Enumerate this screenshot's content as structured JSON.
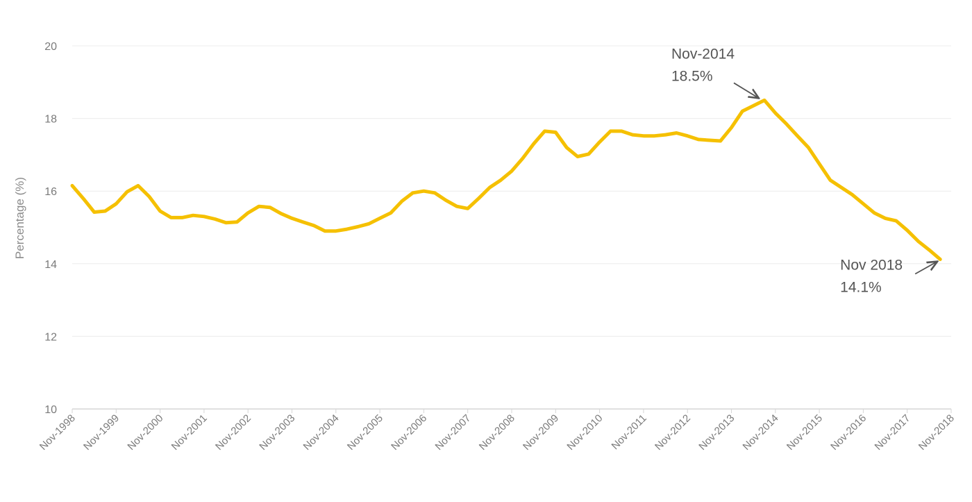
{
  "chart_data": {
    "type": "line",
    "title": "",
    "xlabel": "",
    "ylabel": "Percentage (%)",
    "ylim": [
      10,
      20
    ],
    "yticks": [
      10,
      12,
      14,
      16,
      18,
      20
    ],
    "xlim": [
      0,
      80
    ],
    "grid": "horizontal",
    "legend": "none",
    "line_color": "#F5C000",
    "x_tick_labels": [
      {
        "x": 0,
        "label": "Nov-1998"
      },
      {
        "x": 4,
        "label": "Nov-1999"
      },
      {
        "x": 8,
        "label": "Nov-2000"
      },
      {
        "x": 12,
        "label": "Nov-2001"
      },
      {
        "x": 16,
        "label": "Nov-2002"
      },
      {
        "x": 20,
        "label": "Nov-2003"
      },
      {
        "x": 24,
        "label": "Nov-2004"
      },
      {
        "x": 28,
        "label": "Nov-2005"
      },
      {
        "x": 32,
        "label": "Nov-2006"
      },
      {
        "x": 36,
        "label": "Nov-2007"
      },
      {
        "x": 40,
        "label": "Nov-2008"
      },
      {
        "x": 44,
        "label": "Nov-2009"
      },
      {
        "x": 48,
        "label": "Nov-2010"
      },
      {
        "x": 52,
        "label": "Nov-2011"
      },
      {
        "x": 56,
        "label": "Nov-2012"
      },
      {
        "x": 60,
        "label": "Nov-2013"
      },
      {
        "x": 64,
        "label": "Nov-2014"
      },
      {
        "x": 68,
        "label": "Nov-2015"
      },
      {
        "x": 72,
        "label": "Nov-2016"
      },
      {
        "x": 76,
        "label": "Nov-2017"
      },
      {
        "x": 80,
        "label": "Nov-2018"
      }
    ],
    "series": [
      {
        "points": [
          [
            0,
            16.15
          ],
          [
            1,
            15.8
          ],
          [
            2,
            15.42
          ],
          [
            3,
            15.45
          ],
          [
            4,
            15.65
          ],
          [
            5,
            15.98
          ],
          [
            6,
            16.15
          ],
          [
            7,
            15.85
          ],
          [
            8,
            15.45
          ],
          [
            9,
            15.27
          ],
          [
            10,
            15.27
          ],
          [
            11,
            15.33
          ],
          [
            12,
            15.3
          ],
          [
            13,
            15.23
          ],
          [
            14,
            15.13
          ],
          [
            15,
            15.15
          ],
          [
            16,
            15.4
          ],
          [
            17,
            15.58
          ],
          [
            18,
            15.55
          ],
          [
            19,
            15.38
          ],
          [
            20,
            15.25
          ],
          [
            21,
            15.15
          ],
          [
            22,
            15.05
          ],
          [
            23,
            14.9
          ],
          [
            24,
            14.9
          ],
          [
            25,
            14.95
          ],
          [
            26,
            15.02
          ],
          [
            27,
            15.1
          ],
          [
            28,
            15.25
          ],
          [
            29,
            15.4
          ],
          [
            30,
            15.72
          ],
          [
            31,
            15.95
          ],
          [
            32,
            16.0
          ],
          [
            33,
            15.95
          ],
          [
            34,
            15.75
          ],
          [
            35,
            15.58
          ],
          [
            36,
            15.52
          ],
          [
            37,
            15.8
          ],
          [
            38,
            16.1
          ],
          [
            39,
            16.3
          ],
          [
            40,
            16.55
          ],
          [
            41,
            16.9
          ],
          [
            42,
            17.3
          ],
          [
            43,
            17.65
          ],
          [
            44,
            17.62
          ],
          [
            45,
            17.2
          ],
          [
            46,
            16.95
          ],
          [
            47,
            17.02
          ],
          [
            48,
            17.35
          ],
          [
            49,
            17.65
          ],
          [
            50,
            17.65
          ],
          [
            51,
            17.55
          ],
          [
            52,
            17.52
          ],
          [
            53,
            17.52
          ],
          [
            54,
            17.55
          ],
          [
            55,
            17.6
          ],
          [
            56,
            17.52
          ],
          [
            57,
            17.42
          ],
          [
            58,
            17.4
          ],
          [
            59,
            17.38
          ],
          [
            60,
            17.75
          ],
          [
            61,
            18.2
          ],
          [
            62,
            18.35
          ],
          [
            63,
            18.5
          ],
          [
            64,
            18.15
          ],
          [
            65,
            17.85
          ],
          [
            66,
            17.52
          ],
          [
            67,
            17.2
          ],
          [
            68,
            16.75
          ],
          [
            69,
            16.3
          ],
          [
            70,
            16.1
          ],
          [
            71,
            15.9
          ],
          [
            72,
            15.65
          ],
          [
            73,
            15.4
          ],
          [
            74,
            15.25
          ],
          [
            75,
            15.18
          ],
          [
            76,
            14.92
          ],
          [
            77,
            14.62
          ],
          [
            78,
            14.38
          ],
          [
            79,
            14.12
          ]
        ]
      }
    ],
    "annotations": [
      {
        "line1": "Nov-2014",
        "line2": "18.5%",
        "point_x": 63,
        "point_y": 18.5
      },
      {
        "line1": "Nov 2018",
        "line2": "14.1%",
        "point_x": 79,
        "point_y": 14.12
      }
    ]
  }
}
